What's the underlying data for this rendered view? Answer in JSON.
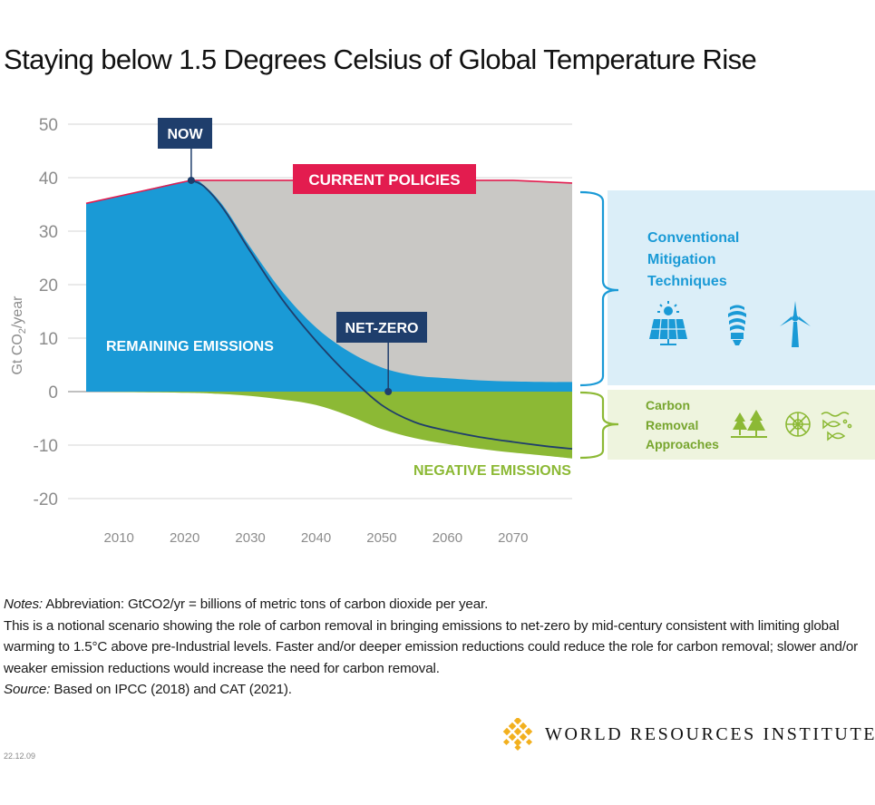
{
  "chart_data": {
    "type": "area",
    "title": "Staying below 1.5 Degrees Celsius of Global Temperature Rise",
    "ylabel": "Gt CO2/year",
    "ylabel_main": "Gt CO",
    "ylabel_sub": "2",
    "ylabel_tail": "/year",
    "ylim": [
      -20,
      50
    ],
    "yticks": [
      50,
      40,
      30,
      20,
      10,
      0,
      -10,
      -20
    ],
    "xlim": [
      2005,
      2079
    ],
    "xticks": [
      2010,
      2020,
      2030,
      2040,
      2050,
      2060,
      2070
    ],
    "series": [
      {
        "name": "Current Policies",
        "color": "#e31c4f",
        "x": [
          2005,
          2021,
          2030,
          2040,
          2050,
          2060,
          2070,
          2079
        ],
        "y": [
          35.2,
          39.5,
          39.5,
          39.5,
          39.5,
          39.5,
          39.5,
          39.0
        ]
      },
      {
        "name": "Remaining Emissions",
        "color": "#1a9ad6",
        "x": [
          2005,
          2010,
          2015,
          2021,
          2023,
          2026,
          2030,
          2035,
          2040,
          2045,
          2050,
          2055,
          2060,
          2065,
          2070,
          2075,
          2079
        ],
        "y": [
          35.2,
          36.5,
          38.0,
          39.5,
          38.5,
          34.5,
          27.0,
          18.5,
          12.0,
          7.5,
          4.5,
          3.0,
          2.5,
          2.1,
          1.9,
          1.8,
          1.8
        ]
      },
      {
        "name": "Negative Emissions",
        "color": "#8cb935",
        "x": [
          2005,
          2020,
          2025,
          2030,
          2035,
          2040,
          2045,
          2050,
          2055,
          2060,
          2065,
          2070,
          2075,
          2079
        ],
        "y": [
          0,
          -0.2,
          -0.4,
          -0.8,
          -1.5,
          -2.5,
          -4.5,
          -7.0,
          -8.7,
          -9.8,
          -10.7,
          -11.4,
          -12.0,
          -12.5
        ]
      },
      {
        "name": "Net Emissions",
        "color": "#1f3e6c",
        "x": [
          2021,
          2023,
          2026,
          2030,
          2035,
          2040,
          2045,
          2050,
          2055,
          2060,
          2065,
          2070,
          2075,
          2079
        ],
        "y": [
          39.5,
          38.3,
          34.0,
          26.2,
          17.0,
          9.5,
          3.0,
          -2.5,
          -5.7,
          -7.3,
          -8.5,
          -9.4,
          -10.2,
          -10.7
        ]
      }
    ],
    "annotations": [
      {
        "label": "NOW",
        "x": 2021,
        "y": 39.5
      },
      {
        "label": "NET-ZERO",
        "x": 2051,
        "y": 0
      }
    ],
    "area_labels": {
      "current": "CURRENT POLICIES",
      "remaining": "REMAINING EMISSIONS",
      "negative": "NEGATIVE EMISSIONS"
    }
  },
  "side_panels": {
    "conventional": {
      "line1": "Conventional",
      "line2": "Mitigation",
      "line3": "Techniques",
      "icons": [
        "solar-panel-icon",
        "light-bulb-icon",
        "wind-turbine-icon"
      ],
      "bg": "#dbeef8",
      "text_color": "#1a9ad6"
    },
    "removal": {
      "line1": "Carbon",
      "line2": "Removal",
      "line3": "Approaches",
      "icons": [
        "trees-icon",
        "cross-section-icon",
        "ocean-icon"
      ],
      "bg": "#eef4de",
      "text_color": "#77a52e"
    }
  },
  "notes": {
    "line1_label": "Notes:",
    "line1_text": " Abbreviation: GtCO2/yr = billions of metric tons of carbon dioxide per year.",
    "body": "This is a notional scenario showing the role of carbon removal in bringing emissions to net-zero by mid-century consistent with limiting global warming to 1.5°C above pre-Industrial levels. Faster and/or deeper emission reductions could reduce the role for carbon removal; slower and/or weaker emission reductions would increase the need for carbon removal.",
    "source_label": "Source:",
    "source_text": " Based on IPCC (2018) and CAT (2021)."
  },
  "footer": {
    "logo_text": "WORLD RESOURCES INSTITUTE",
    "date": "22.12.09"
  },
  "colors": {
    "grey_area": "#c9c8c5",
    "blue": "#1a9ad6",
    "green": "#8cb935",
    "red": "#e31c4f",
    "navy": "#1f3e6c",
    "axis_text": "#8c8c8c",
    "logo_gold": "#f2b01e"
  }
}
